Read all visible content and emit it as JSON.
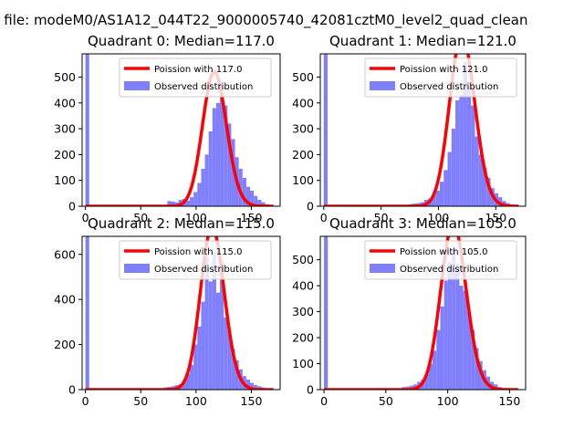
{
  "figure": {
    "suptitle": "n file: modeM0/AS1A12_044T22_9000005740_42081cztM0_level2_quad_clean"
  },
  "colors": {
    "observed": "#8080ff",
    "poisson": "#ff0000",
    "axis": "#000000"
  },
  "chart_data": [
    {
      "type": "bar",
      "title": "Quadrant 0: Median=117.0",
      "median": 117.0,
      "xlim": [
        -3,
        176
      ],
      "ylim": [
        0,
        590
      ],
      "xticks": [
        0,
        50,
        100,
        150
      ],
      "yticks": [
        0,
        100,
        200,
        300,
        400,
        500
      ],
      "legend": {
        "placement": "upper-right",
        "entries": [
          "Poission with 117.0",
          "Observed distribution"
        ]
      },
      "series": [
        {
          "name": "Observed distribution",
          "bin_width": 3.4,
          "bins_start": [
            0,
            74,
            77.4,
            80.8,
            84.2,
            87.6,
            91,
            94.4,
            97.8,
            101.2,
            104.6,
            108,
            111.4,
            114.8,
            118.2,
            121.6,
            125,
            128.4,
            131.8,
            135.2,
            138.6,
            142,
            145.4,
            148.8,
            152.2,
            155.6,
            159,
            162.4
          ],
          "counts": [
            590,
            20,
            18,
            15,
            25,
            28,
            22,
            35,
            55,
            90,
            145,
            200,
            290,
            380,
            400,
            440,
            390,
            320,
            260,
            190,
            145,
            110,
            75,
            60,
            40,
            25,
            15,
            8
          ]
        },
        {
          "name": "Poission with 117.0",
          "mean": 117.0,
          "x_range": [
            0,
            170
          ]
        }
      ]
    },
    {
      "type": "bar",
      "title": "Quadrant 1: Median=121.0",
      "median": 121.0,
      "xlim": [
        -3,
        176
      ],
      "ylim": [
        0,
        590
      ],
      "xticks": [
        0,
        50,
        100,
        150
      ],
      "yticks": [
        0,
        100,
        200,
        300,
        400,
        500
      ],
      "legend": {
        "placement": "upper-right",
        "entries": [
          "Poission with 121.0",
          "Observed distribution"
        ]
      },
      "series": [
        {
          "name": "Observed distribution",
          "bin_width": 3.4,
          "bins_start": [
            0,
            74,
            77.4,
            80.8,
            84.2,
            87.6,
            91,
            94.4,
            97.8,
            101.2,
            104.6,
            108,
            111.4,
            114.8,
            118.2,
            121.6,
            125,
            128.4,
            131.8,
            135.2,
            138.6,
            142,
            145.4,
            148.8,
            152.2,
            155.6,
            159
          ],
          "counts": [
            590,
            8,
            10,
            12,
            15,
            25,
            30,
            45,
            60,
            95,
            140,
            210,
            300,
            410,
            430,
            560,
            460,
            390,
            270,
            200,
            150,
            110,
            70,
            50,
            35,
            20,
            12
          ]
        },
        {
          "name": "Poission with 121.0",
          "mean": 121.0,
          "x_range": [
            0,
            170
          ]
        }
      ]
    },
    {
      "type": "bar",
      "title": "Quadrant 2: Median=115.0",
      "median": 115.0,
      "xlim": [
        -3,
        176
      ],
      "ylim": [
        0,
        680
      ],
      "xticks": [
        0,
        50,
        100,
        150
      ],
      "yticks": [
        0,
        200,
        400,
        600
      ],
      "legend": {
        "placement": "upper-right",
        "entries": [
          "Poission with 115.0",
          "Observed distribution"
        ]
      },
      "series": [
        {
          "name": "Observed distribution",
          "bin_width": 3.4,
          "bins_start": [
            0,
            70.6,
            74,
            77.4,
            80.8,
            84.2,
            87.6,
            91,
            94.4,
            97.8,
            101.2,
            104.6,
            108,
            111.4,
            114.8,
            118.2,
            121.6,
            125,
            128.4,
            131.8,
            135.2,
            138.6,
            142,
            145.4,
            148.8,
            152.2,
            155.6,
            159,
            162.4
          ],
          "counts": [
            680,
            10,
            12,
            15,
            20,
            25,
            40,
            70,
            110,
            200,
            280,
            390,
            590,
            480,
            610,
            430,
            570,
            320,
            260,
            180,
            130,
            90,
            60,
            45,
            30,
            20,
            15,
            10,
            5
          ]
        },
        {
          "name": "Poission with 115.0",
          "mean": 115.0,
          "x_range": [
            0,
            170
          ]
        }
      ]
    },
    {
      "type": "bar",
      "title": "Quadrant 3: Median=105.0",
      "median": 105.0,
      "xlim": [
        -3,
        163
      ],
      "ylim": [
        0,
        590
      ],
      "xticks": [
        0,
        50,
        100,
        150
      ],
      "yticks": [
        0,
        100,
        200,
        300,
        400,
        500
      ],
      "legend": {
        "placement": "upper-right",
        "entries": [
          "Poission with 105.0",
          "Observed distribution"
        ]
      },
      "series": [
        {
          "name": "Observed distribution",
          "bin_width": 3.1,
          "bins_start": [
            0,
            63,
            66.1,
            69.2,
            72.3,
            75.4,
            78.5,
            81.6,
            84.7,
            87.8,
            90.9,
            94,
            97.1,
            100.2,
            103.3,
            106.4,
            109.5,
            112.6,
            115.7,
            118.8,
            121.9,
            125,
            128.1,
            131.2,
            134.3,
            137.4,
            140.5
          ],
          "counts": [
            590,
            10,
            12,
            15,
            20,
            30,
            40,
            60,
            100,
            150,
            230,
            320,
            420,
            490,
            540,
            480,
            400,
            380,
            300,
            230,
            160,
            110,
            75,
            50,
            30,
            20,
            10
          ]
        },
        {
          "name": "Poission with 105.0",
          "mean": 105.0,
          "x_range": [
            0,
            157
          ]
        }
      ]
    }
  ]
}
